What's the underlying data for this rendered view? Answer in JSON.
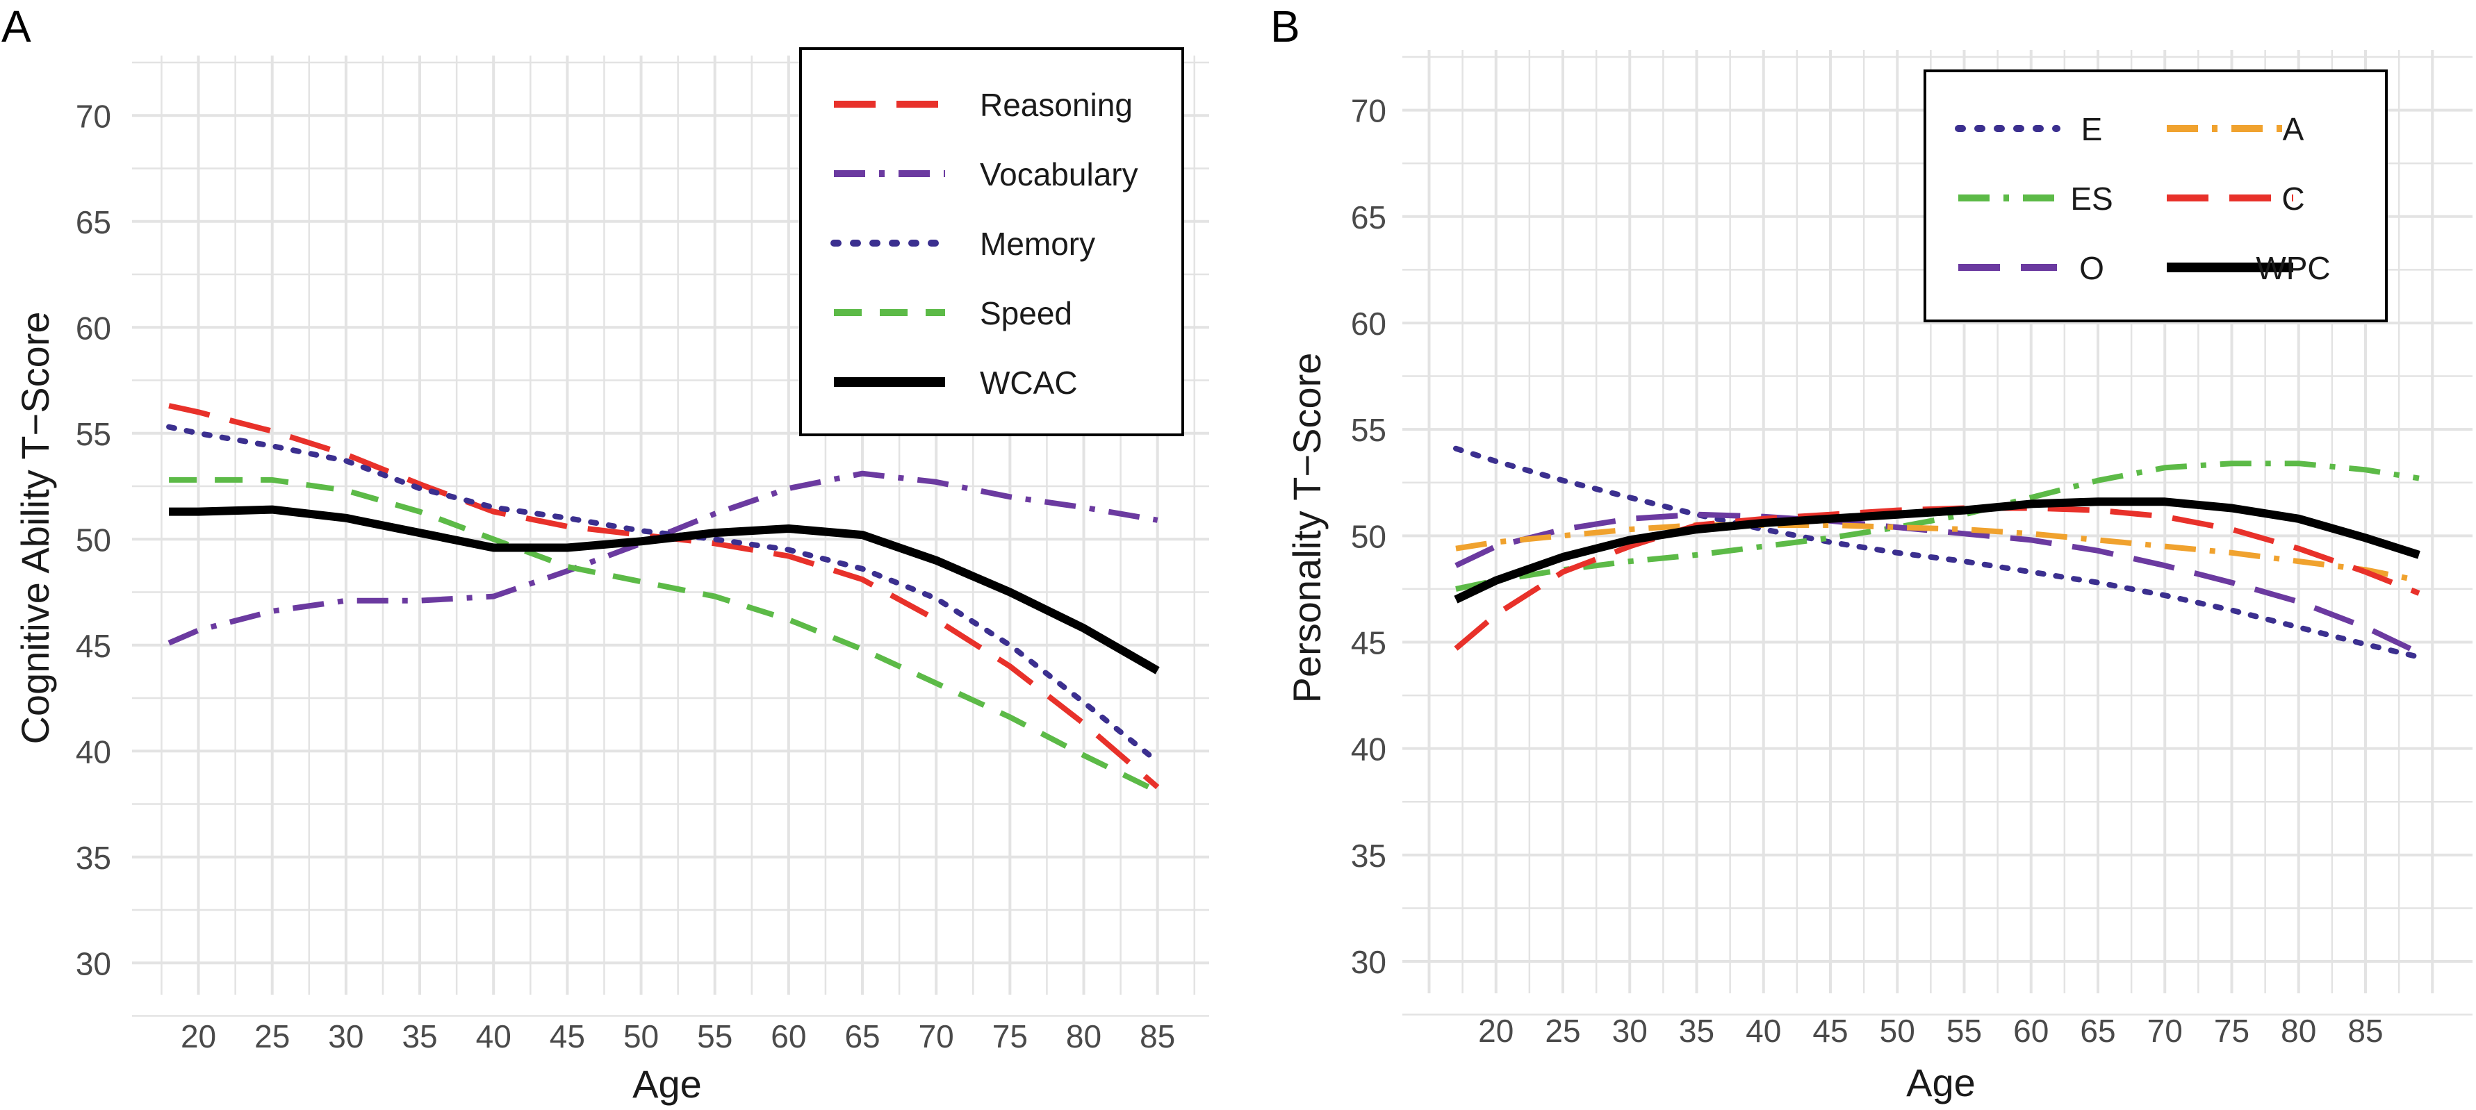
{
  "chart_data": [
    {
      "panel_label": "A",
      "type": "line",
      "title": "",
      "xlabel": "Age",
      "ylabel": "Cognitive Ability T−Score",
      "xlim": [
        15.5,
        88.5
      ],
      "ylim": [
        28.5,
        72.5
      ],
      "xticks": [
        20,
        25,
        30,
        35,
        40,
        45,
        50,
        55,
        60,
        65,
        70,
        75,
        80,
        85
      ],
      "yticks": [
        30,
        35,
        40,
        45,
        50,
        55,
        60,
        65,
        70
      ],
      "grid": true,
      "legend_position": "top-right",
      "legend_columns": 1,
      "series": [
        {
          "name": "Reasoning",
          "color": "#e8312a",
          "dash": "longdash",
          "x": [
            18,
            20,
            25,
            30,
            35,
            40,
            45,
            50,
            55,
            60,
            65,
            70,
            75,
            80,
            85
          ],
          "y": [
            56.3,
            56.0,
            55.1,
            54.0,
            52.6,
            51.3,
            50.6,
            50.2,
            49.8,
            49.2,
            48.1,
            46.2,
            44.0,
            41.3,
            38.3
          ]
        },
        {
          "name": "Vocabulary",
          "color": "#6b3aa0",
          "dash": "dashdot",
          "x": [
            18,
            20,
            25,
            30,
            35,
            40,
            45,
            50,
            55,
            60,
            65,
            70,
            75,
            80,
            85
          ],
          "y": [
            45.1,
            45.7,
            46.6,
            47.1,
            47.1,
            47.3,
            48.5,
            49.8,
            51.2,
            52.4,
            53.1,
            52.7,
            52.0,
            51.5,
            50.9
          ]
        },
        {
          "name": "Memory",
          "color": "#3b2f8f",
          "dash": "dotted",
          "x": [
            18,
            20,
            25,
            30,
            35,
            40,
            45,
            50,
            55,
            60,
            65,
            70,
            75,
            80,
            85
          ],
          "y": [
            55.3,
            55.0,
            54.4,
            53.7,
            52.4,
            51.5,
            51.0,
            50.4,
            50.0,
            49.5,
            48.6,
            47.2,
            45.0,
            42.3,
            39.5
          ]
        },
        {
          "name": "Speed",
          "color": "#5cba47",
          "dash": "dashed",
          "x": [
            18,
            20,
            25,
            30,
            35,
            40,
            45,
            50,
            55,
            60,
            65,
            70,
            75,
            80,
            85
          ],
          "y": [
            52.8,
            52.8,
            52.8,
            52.3,
            51.3,
            50.0,
            48.7,
            48.0,
            47.3,
            46.2,
            44.8,
            43.2,
            41.6,
            39.8,
            38.1
          ]
        },
        {
          "name": "WCAC",
          "color": "#000000",
          "dash": "solid",
          "x": [
            18,
            20,
            25,
            30,
            35,
            40,
            45,
            50,
            55,
            60,
            65,
            70,
            75,
            80,
            85
          ],
          "y": [
            51.3,
            51.3,
            51.4,
            51.0,
            50.3,
            49.6,
            49.6,
            49.9,
            50.3,
            50.5,
            50.2,
            49.0,
            47.5,
            45.8,
            43.8
          ]
        }
      ]
    },
    {
      "panel_label": "B",
      "type": "line",
      "title": "",
      "xlabel": "Age",
      "ylabel": "Personality T−Score",
      "xlim": [
        13,
        93
      ],
      "ylim": [
        28.5,
        72.5
      ],
      "xticks": [
        20,
        25,
        30,
        35,
        40,
        45,
        50,
        55,
        60,
        65,
        70,
        75,
        80,
        85
      ],
      "yticks": [
        30,
        35,
        40,
        45,
        50,
        55,
        60,
        65,
        70
      ],
      "grid": true,
      "legend_position": "top-right",
      "legend_columns": 2,
      "series": [
        {
          "name": "E",
          "color": "#3b2f8f",
          "dash": "dotted",
          "x": [
            17,
            20,
            25,
            30,
            35,
            40,
            45,
            50,
            55,
            60,
            65,
            70,
            75,
            80,
            85,
            89
          ],
          "y": [
            54.1,
            53.5,
            52.6,
            51.8,
            51.0,
            50.3,
            49.7,
            49.2,
            48.8,
            48.3,
            47.8,
            47.2,
            46.5,
            45.7,
            44.9,
            44.3
          ]
        },
        {
          "name": "ES",
          "color": "#5cba47",
          "dash": "dashdot",
          "x": [
            17,
            20,
            25,
            30,
            35,
            40,
            45,
            50,
            55,
            60,
            65,
            70,
            75,
            80,
            85,
            89
          ],
          "y": [
            47.5,
            47.9,
            48.4,
            48.8,
            49.1,
            49.5,
            49.9,
            50.4,
            51.0,
            51.8,
            52.6,
            53.2,
            53.4,
            53.4,
            53.1,
            52.7
          ]
        },
        {
          "name": "O",
          "color": "#6b3aa0",
          "dash": "longdash",
          "x": [
            17,
            20,
            25,
            30,
            35,
            40,
            45,
            50,
            55,
            60,
            65,
            70,
            75,
            80,
            85,
            89
          ],
          "y": [
            48.6,
            49.5,
            50.3,
            50.8,
            51.0,
            50.9,
            50.7,
            50.4,
            50.1,
            49.8,
            49.3,
            48.6,
            47.8,
            46.9,
            45.7,
            44.5
          ]
        },
        {
          "name": "A",
          "color": "#f0a22e",
          "dash": "dashdot",
          "x": [
            17,
            20,
            25,
            30,
            35,
            40,
            45,
            50,
            55,
            60,
            65,
            70,
            75,
            80,
            85,
            89
          ],
          "y": [
            49.4,
            49.7,
            50.0,
            50.3,
            50.5,
            50.5,
            50.5,
            50.4,
            50.3,
            50.1,
            49.8,
            49.5,
            49.2,
            48.8,
            48.4,
            47.9
          ]
        },
        {
          "name": "C",
          "color": "#e8312a",
          "dash": "longdash",
          "x": [
            17,
            20,
            25,
            30,
            35,
            40,
            45,
            50,
            55,
            60,
            65,
            70,
            75,
            80,
            85,
            89
          ],
          "y": [
            44.7,
            46.3,
            48.3,
            49.5,
            50.5,
            50.8,
            51.0,
            51.2,
            51.3,
            51.3,
            51.2,
            50.9,
            50.3,
            49.4,
            48.3,
            47.3
          ]
        },
        {
          "name": "WPC",
          "color": "#000000",
          "dash": "solid",
          "x": [
            17,
            20,
            25,
            30,
            35,
            40,
            45,
            50,
            55,
            60,
            65,
            70,
            75,
            80,
            85,
            89
          ],
          "y": [
            47.0,
            47.9,
            49.0,
            49.8,
            50.3,
            50.6,
            50.8,
            51.0,
            51.2,
            51.5,
            51.6,
            51.6,
            51.3,
            50.8,
            49.9,
            49.1
          ]
        }
      ]
    }
  ]
}
